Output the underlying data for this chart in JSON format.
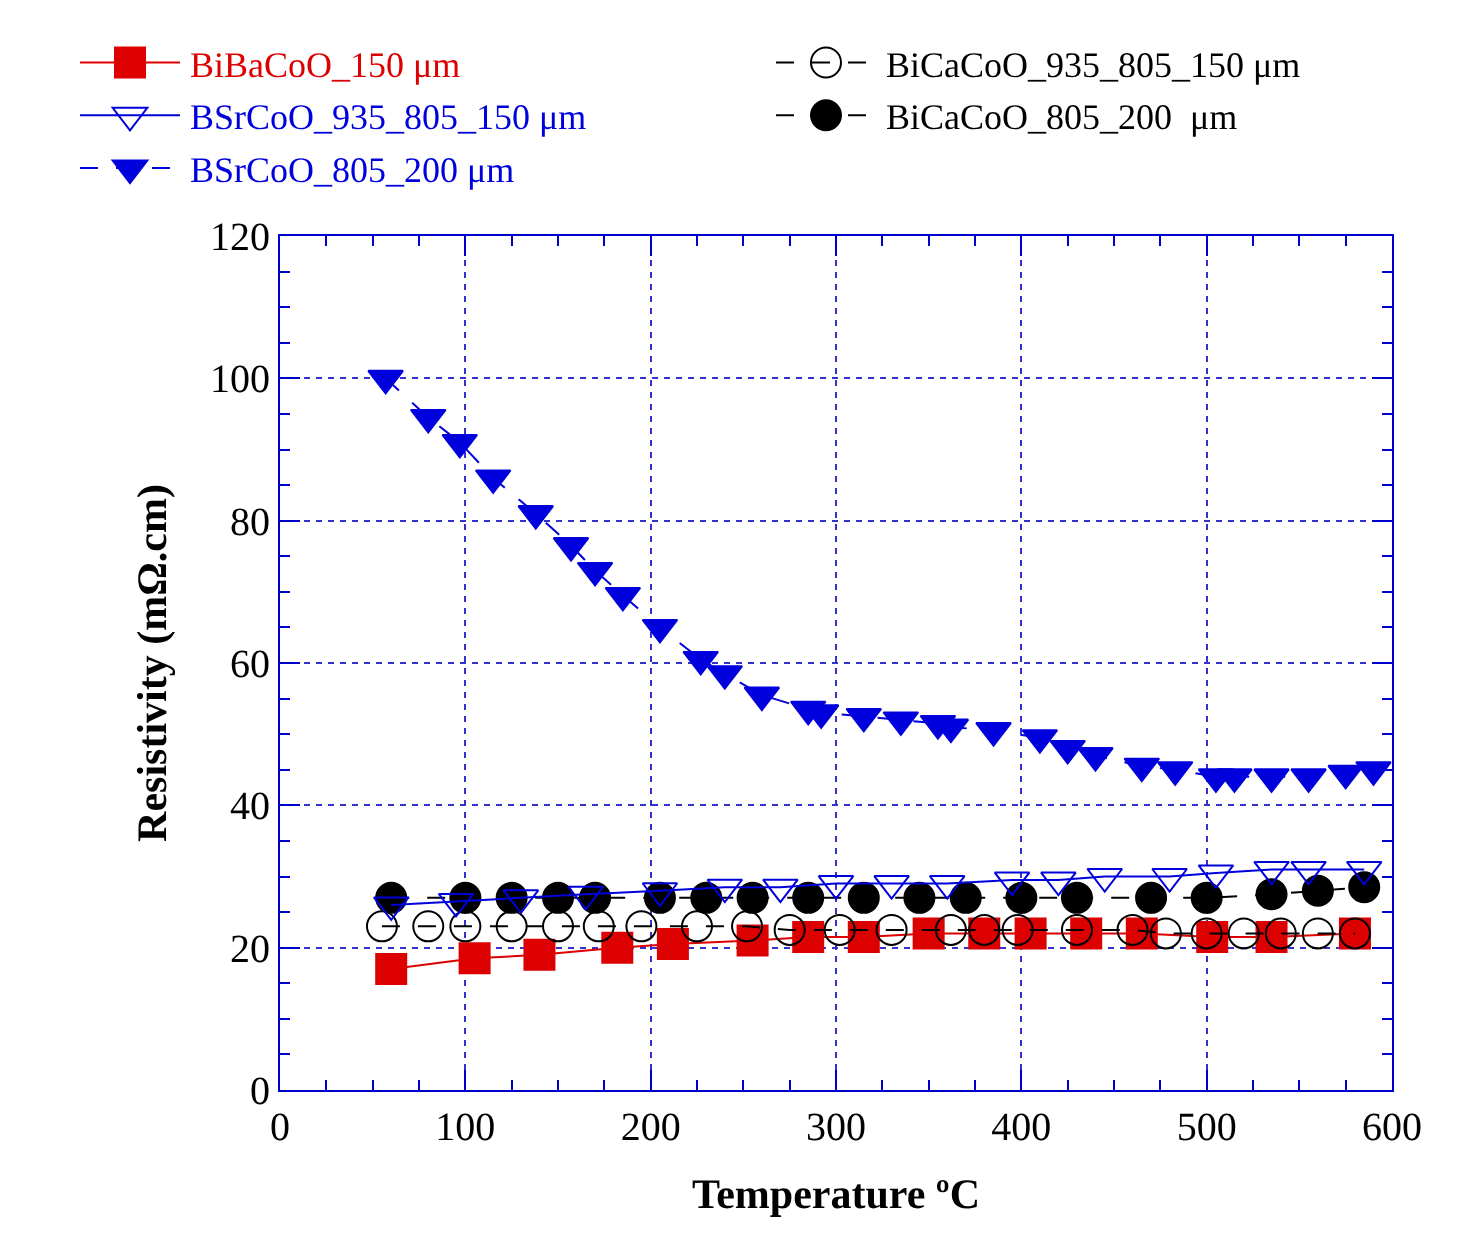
{
  "chart_data": {
    "type": "line",
    "xlabel": "Temperature ºC",
    "ylabel": "Resistivity (mΩ.cm)",
    "xlim": [
      0,
      600
    ],
    "xticks": [
      0,
      100,
      200,
      300,
      400,
      500,
      600
    ],
    "ylim": [
      0,
      120
    ],
    "yticks": [
      0,
      20,
      40,
      60,
      80,
      100,
      120
    ],
    "grid": true,
    "legend": "top",
    "series": [
      {
        "name": "BiBaCoO_150 μm",
        "color": "#dd0000",
        "marker": "square",
        "line_style": "solid",
        "x": [
          60,
          105,
          140,
          182,
          212,
          255,
          285,
          315,
          350,
          380,
          405,
          435,
          465,
          503,
          535,
          580
        ],
        "values": [
          17,
          18.5,
          19,
          20,
          20.5,
          21,
          21.5,
          21.5,
          22,
          22,
          22,
          22,
          22,
          21.5,
          21.5,
          22
        ]
      },
      {
        "name": "BiCaCoO_935_805_150 μm",
        "color": "#000000",
        "marker": "circle-open",
        "line_style": "dashed",
        "x": [
          55,
          80,
          100,
          125,
          150,
          172,
          195,
          225,
          252,
          275,
          302,
          330,
          362,
          380,
          398,
          430,
          460,
          478,
          500,
          520,
          540,
          560,
          580
        ],
        "values": [
          23,
          23,
          23,
          23,
          23,
          23,
          23,
          23,
          23,
          22.5,
          22.5,
          22.5,
          22.5,
          22.5,
          22.5,
          22.5,
          22.5,
          22,
          22,
          22,
          22,
          22,
          22
        ]
      },
      {
        "name": "BSrCoO_935_805_150 μm",
        "color": "#0000dd",
        "marker": "triangle-open",
        "line_style": "solid",
        "x": [
          60,
          95,
          130,
          165,
          205,
          240,
          270,
          300,
          330,
          360,
          395,
          420,
          445,
          480,
          505,
          535,
          555,
          585
        ],
        "values": [
          26,
          26.5,
          27,
          27.5,
          28,
          28.5,
          28.5,
          29,
          29,
          29,
          29.5,
          29.5,
          30,
          30,
          30.5,
          31,
          31,
          31
        ]
      },
      {
        "name": "BiCaCoO_805_200  μm",
        "color": "#000000",
        "marker": "circle",
        "line_style": "dashed",
        "x": [
          60,
          100,
          125,
          150,
          170,
          205,
          230,
          255,
          285,
          315,
          345,
          370,
          400,
          430,
          470,
          500,
          535,
          560,
          585
        ],
        "values": [
          27,
          27,
          27,
          27,
          27,
          27,
          27,
          27,
          27,
          27,
          27,
          27,
          27,
          27,
          27,
          27,
          27.5,
          28,
          28.5
        ]
      },
      {
        "name": "BSrCoO_805_200 μm",
        "color": "#0000dd",
        "marker": "triangle",
        "line_style": "dashed",
        "x": [
          57,
          80,
          97,
          115,
          138,
          157,
          170,
          185,
          205,
          227,
          240,
          260,
          285,
          292,
          315,
          335,
          355,
          362,
          385,
          410,
          425,
          440,
          465,
          483,
          505,
          515,
          535,
          555,
          575,
          590
        ],
        "values": [
          100,
          94.5,
          91,
          86,
          81,
          76.5,
          73,
          69.5,
          65,
          60.5,
          58.5,
          55.5,
          53.5,
          53,
          52.5,
          52,
          51.5,
          51,
          50.5,
          49.5,
          48,
          47,
          45.5,
          45,
          44,
          44,
          44,
          44,
          44.5,
          45
        ]
      }
    ]
  }
}
